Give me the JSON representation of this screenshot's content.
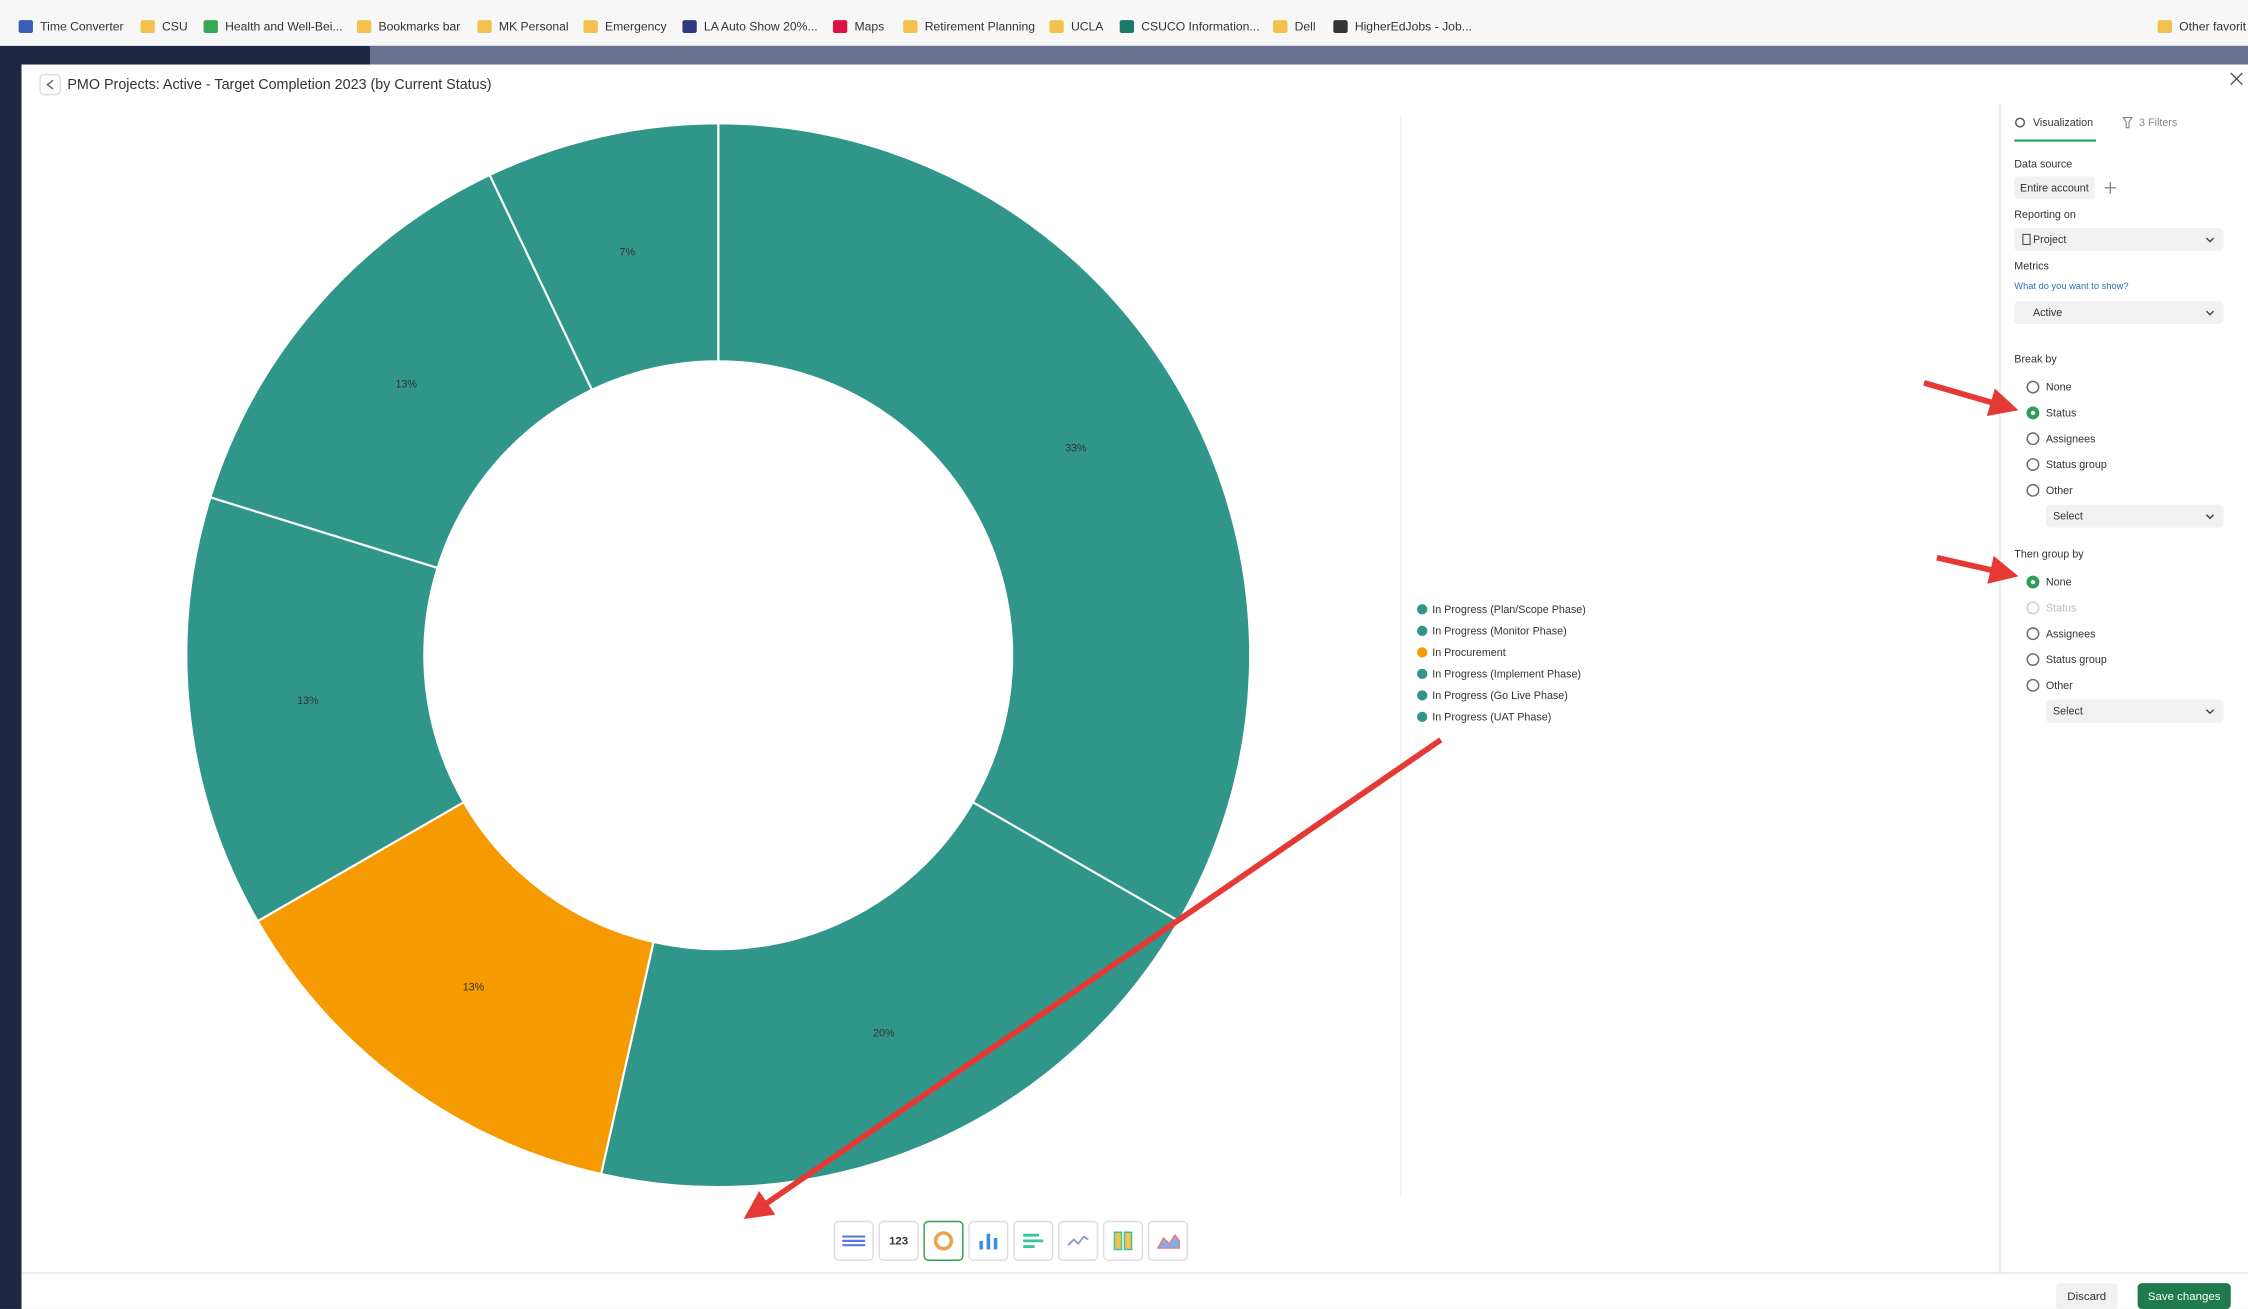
{
  "bookmarks": [
    "Time Converter",
    "CSU",
    "Health and Well-Bei...",
    "Bookmarks bar",
    "MK Personal",
    "Emergency",
    "LA Auto Show 20%...",
    "Maps",
    "Retirement Planning",
    "UCLA",
    "CSUCO Information...",
    "Dell",
    "HigherEdJobs - Job...",
    "Other favorit"
  ],
  "chart_data": {
    "type": "pie",
    "title": "PMO Projects: Active - Target Completion 2023 (by Current Status)",
    "donut": true,
    "categories": [
      "In Progress (Plan/Scope Phase)",
      "In Progress (Monitor Phase)",
      "In Procurement",
      "In Progress (Implement Phase)",
      "In Progress (Go Live Phase)",
      "In Progress (UAT Phase)"
    ],
    "values": [
      33,
      20,
      13,
      13,
      13,
      7
    ],
    "value_labels": [
      "33%",
      "20%",
      "13%",
      "13%",
      "13%",
      "7%"
    ],
    "colors": [
      "#31968a",
      "#31968a",
      "#f59a00",
      "#31968a",
      "#31968a",
      "#31968a"
    ],
    "legend": "right"
  },
  "panel": {
    "tabs": [
      "Visualization",
      "3 Filters"
    ],
    "data_source": {
      "label": "Data source",
      "value": "Entire account"
    },
    "reporting_on": {
      "label": "Reporting on",
      "value": "Project"
    },
    "metrics": {
      "label": "Metrics",
      "hint": "What do you want to show?",
      "value": "Active"
    },
    "break_by": {
      "label": "Break by",
      "options": [
        "None",
        "Status",
        "Assignees",
        "Status group",
        "Other"
      ],
      "selected": 1,
      "select": "Select"
    },
    "then_group_by": {
      "label": "Then group by",
      "options": [
        "None",
        "Status",
        "Assignees",
        "Status group",
        "Other"
      ],
      "selected": 0,
      "disabled": 1,
      "select": "Select"
    }
  },
  "toolbar": {
    "count_icon": "123"
  },
  "footer": {
    "discard": "Discard",
    "save": "Save changes"
  }
}
